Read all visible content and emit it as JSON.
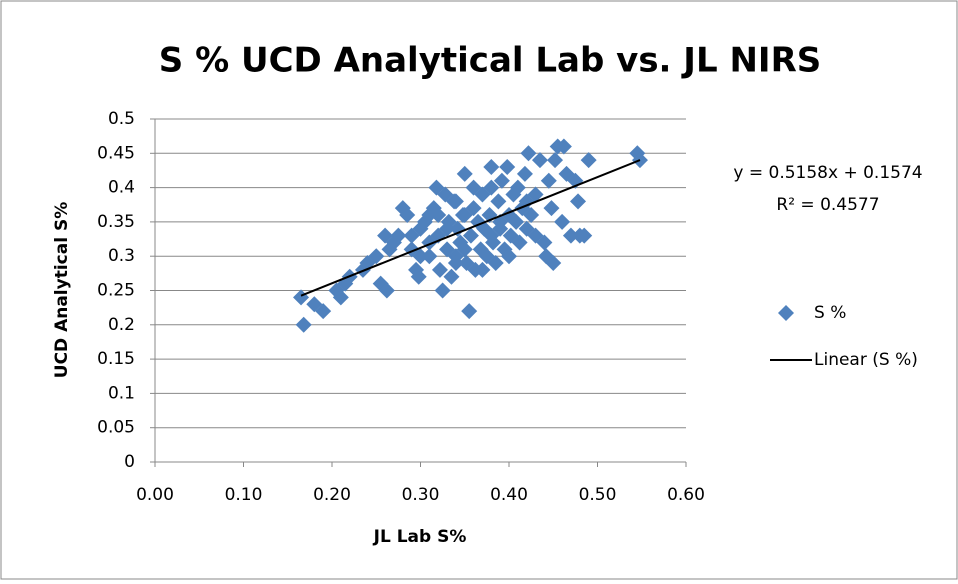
{
  "chart_data": {
    "type": "scatter",
    "title": "S % UCD Analytical Lab vs. JL NIRS",
    "xlabel": "JL Lab S%",
    "ylabel": "UCD Analytical S%",
    "xlim": [
      0,
      0.6
    ],
    "xticks": [
      {
        "value": 0,
        "label": "0.00"
      },
      {
        "value": 0.1,
        "label": "0.10"
      },
      {
        "value": 0.2,
        "label": "0.20"
      },
      {
        "value": 0.3,
        "label": "0.30"
      },
      {
        "value": 0.4,
        "label": "0.40"
      },
      {
        "value": 0.5,
        "label": "0.50"
      },
      {
        "value": 0.6,
        "label": "0.60"
      }
    ],
    "ylim": [
      0,
      0.5
    ],
    "yticks": [
      0,
      0.05,
      0.1,
      0.15,
      0.2,
      0.25,
      0.3,
      0.35,
      0.4,
      0.45,
      0.5
    ],
    "grid": true,
    "legend": "right",
    "annotations": [
      "y = 0.5158x + 0.1574",
      "R² = 0.4577"
    ],
    "series": [
      {
        "name": "S %",
        "color": "#4f81bd",
        "x": [
          0.165,
          0.168,
          0.18,
          0.19,
          0.205,
          0.21,
          0.215,
          0.22,
          0.235,
          0.24,
          0.25,
          0.255,
          0.26,
          0.262,
          0.265,
          0.27,
          0.275,
          0.28,
          0.285,
          0.29,
          0.295,
          0.298,
          0.3,
          0.305,
          0.31,
          0.31,
          0.315,
          0.318,
          0.32,
          0.322,
          0.325,
          0.328,
          0.33,
          0.332,
          0.335,
          0.338,
          0.34,
          0.342,
          0.345,
          0.348,
          0.35,
          0.352,
          0.355,
          0.357,
          0.36,
          0.362,
          0.365,
          0.368,
          0.37,
          0.372,
          0.375,
          0.378,
          0.38,
          0.382,
          0.385,
          0.388,
          0.39,
          0.392,
          0.395,
          0.398,
          0.4,
          0.402,
          0.405,
          0.408,
          0.41,
          0.412,
          0.415,
          0.418,
          0.42,
          0.422,
          0.425,
          0.43,
          0.435,
          0.44,
          0.442,
          0.445,
          0.448,
          0.45,
          0.452,
          0.455,
          0.46,
          0.462,
          0.465,
          0.47,
          0.475,
          0.478,
          0.48,
          0.485,
          0.49,
          0.545,
          0.548,
          0.3,
          0.32,
          0.34,
          0.36,
          0.38,
          0.4,
          0.33,
          0.35,
          0.37,
          0.39,
          0.31,
          0.29,
          0.43,
          0.35,
          0.42,
          0.38,
          0.34
        ],
        "values": [
          0.24,
          0.2,
          0.23,
          0.22,
          0.25,
          0.24,
          0.26,
          0.27,
          0.28,
          0.29,
          0.3,
          0.26,
          0.33,
          0.25,
          0.31,
          0.32,
          0.33,
          0.37,
          0.36,
          0.31,
          0.28,
          0.27,
          0.34,
          0.35,
          0.3,
          0.36,
          0.37,
          0.4,
          0.33,
          0.28,
          0.25,
          0.39,
          0.31,
          0.35,
          0.27,
          0.38,
          0.3,
          0.34,
          0.32,
          0.36,
          0.42,
          0.29,
          0.22,
          0.33,
          0.37,
          0.28,
          0.35,
          0.31,
          0.39,
          0.34,
          0.3,
          0.36,
          0.43,
          0.32,
          0.29,
          0.38,
          0.34,
          0.41,
          0.31,
          0.43,
          0.36,
          0.33,
          0.39,
          0.35,
          0.4,
          0.32,
          0.37,
          0.42,
          0.34,
          0.45,
          0.36,
          0.39,
          0.44,
          0.32,
          0.3,
          0.41,
          0.37,
          0.29,
          0.44,
          0.46,
          0.35,
          0.46,
          0.42,
          0.33,
          0.41,
          0.38,
          0.33,
          0.33,
          0.44,
          0.45,
          0.44,
          0.3,
          0.36,
          0.38,
          0.4,
          0.33,
          0.3,
          0.34,
          0.31,
          0.28,
          0.35,
          0.32,
          0.33,
          0.33,
          0.36,
          0.38,
          0.4,
          0.29
        ]
      },
      {
        "name": "Linear (S %)",
        "color": "#000000",
        "type": "line",
        "x": [
          0.165,
          0.548
        ],
        "values": [
          0.2425,
          0.4401
        ]
      }
    ]
  }
}
